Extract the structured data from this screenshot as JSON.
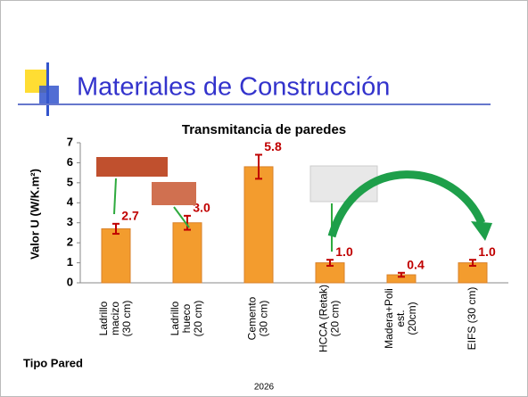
{
  "slide": {
    "title": "Materiales de Construcción",
    "footer": "2026"
  },
  "chart_data": {
    "type": "bar",
    "title": "Transmitancia de paredes",
    "y_label": "Valor U (W/K.m²)",
    "x_label": "Tipo Pared",
    "categories": [
      [
        "Ladrillo",
        "macizo",
        "(30 cm)"
      ],
      [
        "Ladrillo",
        "hueco",
        "(20 cm)"
      ],
      [
        "Cemento",
        "(30 cm)"
      ],
      [
        "HCCA (Retak)",
        "(20 cm)"
      ],
      [
        "Madera+Poli",
        "est.",
        "(20cm)"
      ],
      [
        "EIFS (30 cm)"
      ]
    ],
    "values": [
      2.7,
      3.0,
      5.8,
      1.0,
      0.4,
      1.0
    ],
    "value_labels": [
      "2.7",
      "3.0",
      "5.8",
      "1.0",
      "0.4",
      "1.0"
    ],
    "errors": [
      0.25,
      0.35,
      0.6,
      0.15,
      0.1,
      0.15
    ],
    "color": "#f39c2e",
    "error_color": "#c00000",
    "label_color": "#c00000",
    "ylim": [
      0,
      7
    ],
    "yticks": [
      0,
      1,
      2,
      3,
      4,
      5,
      6,
      7
    ]
  }
}
